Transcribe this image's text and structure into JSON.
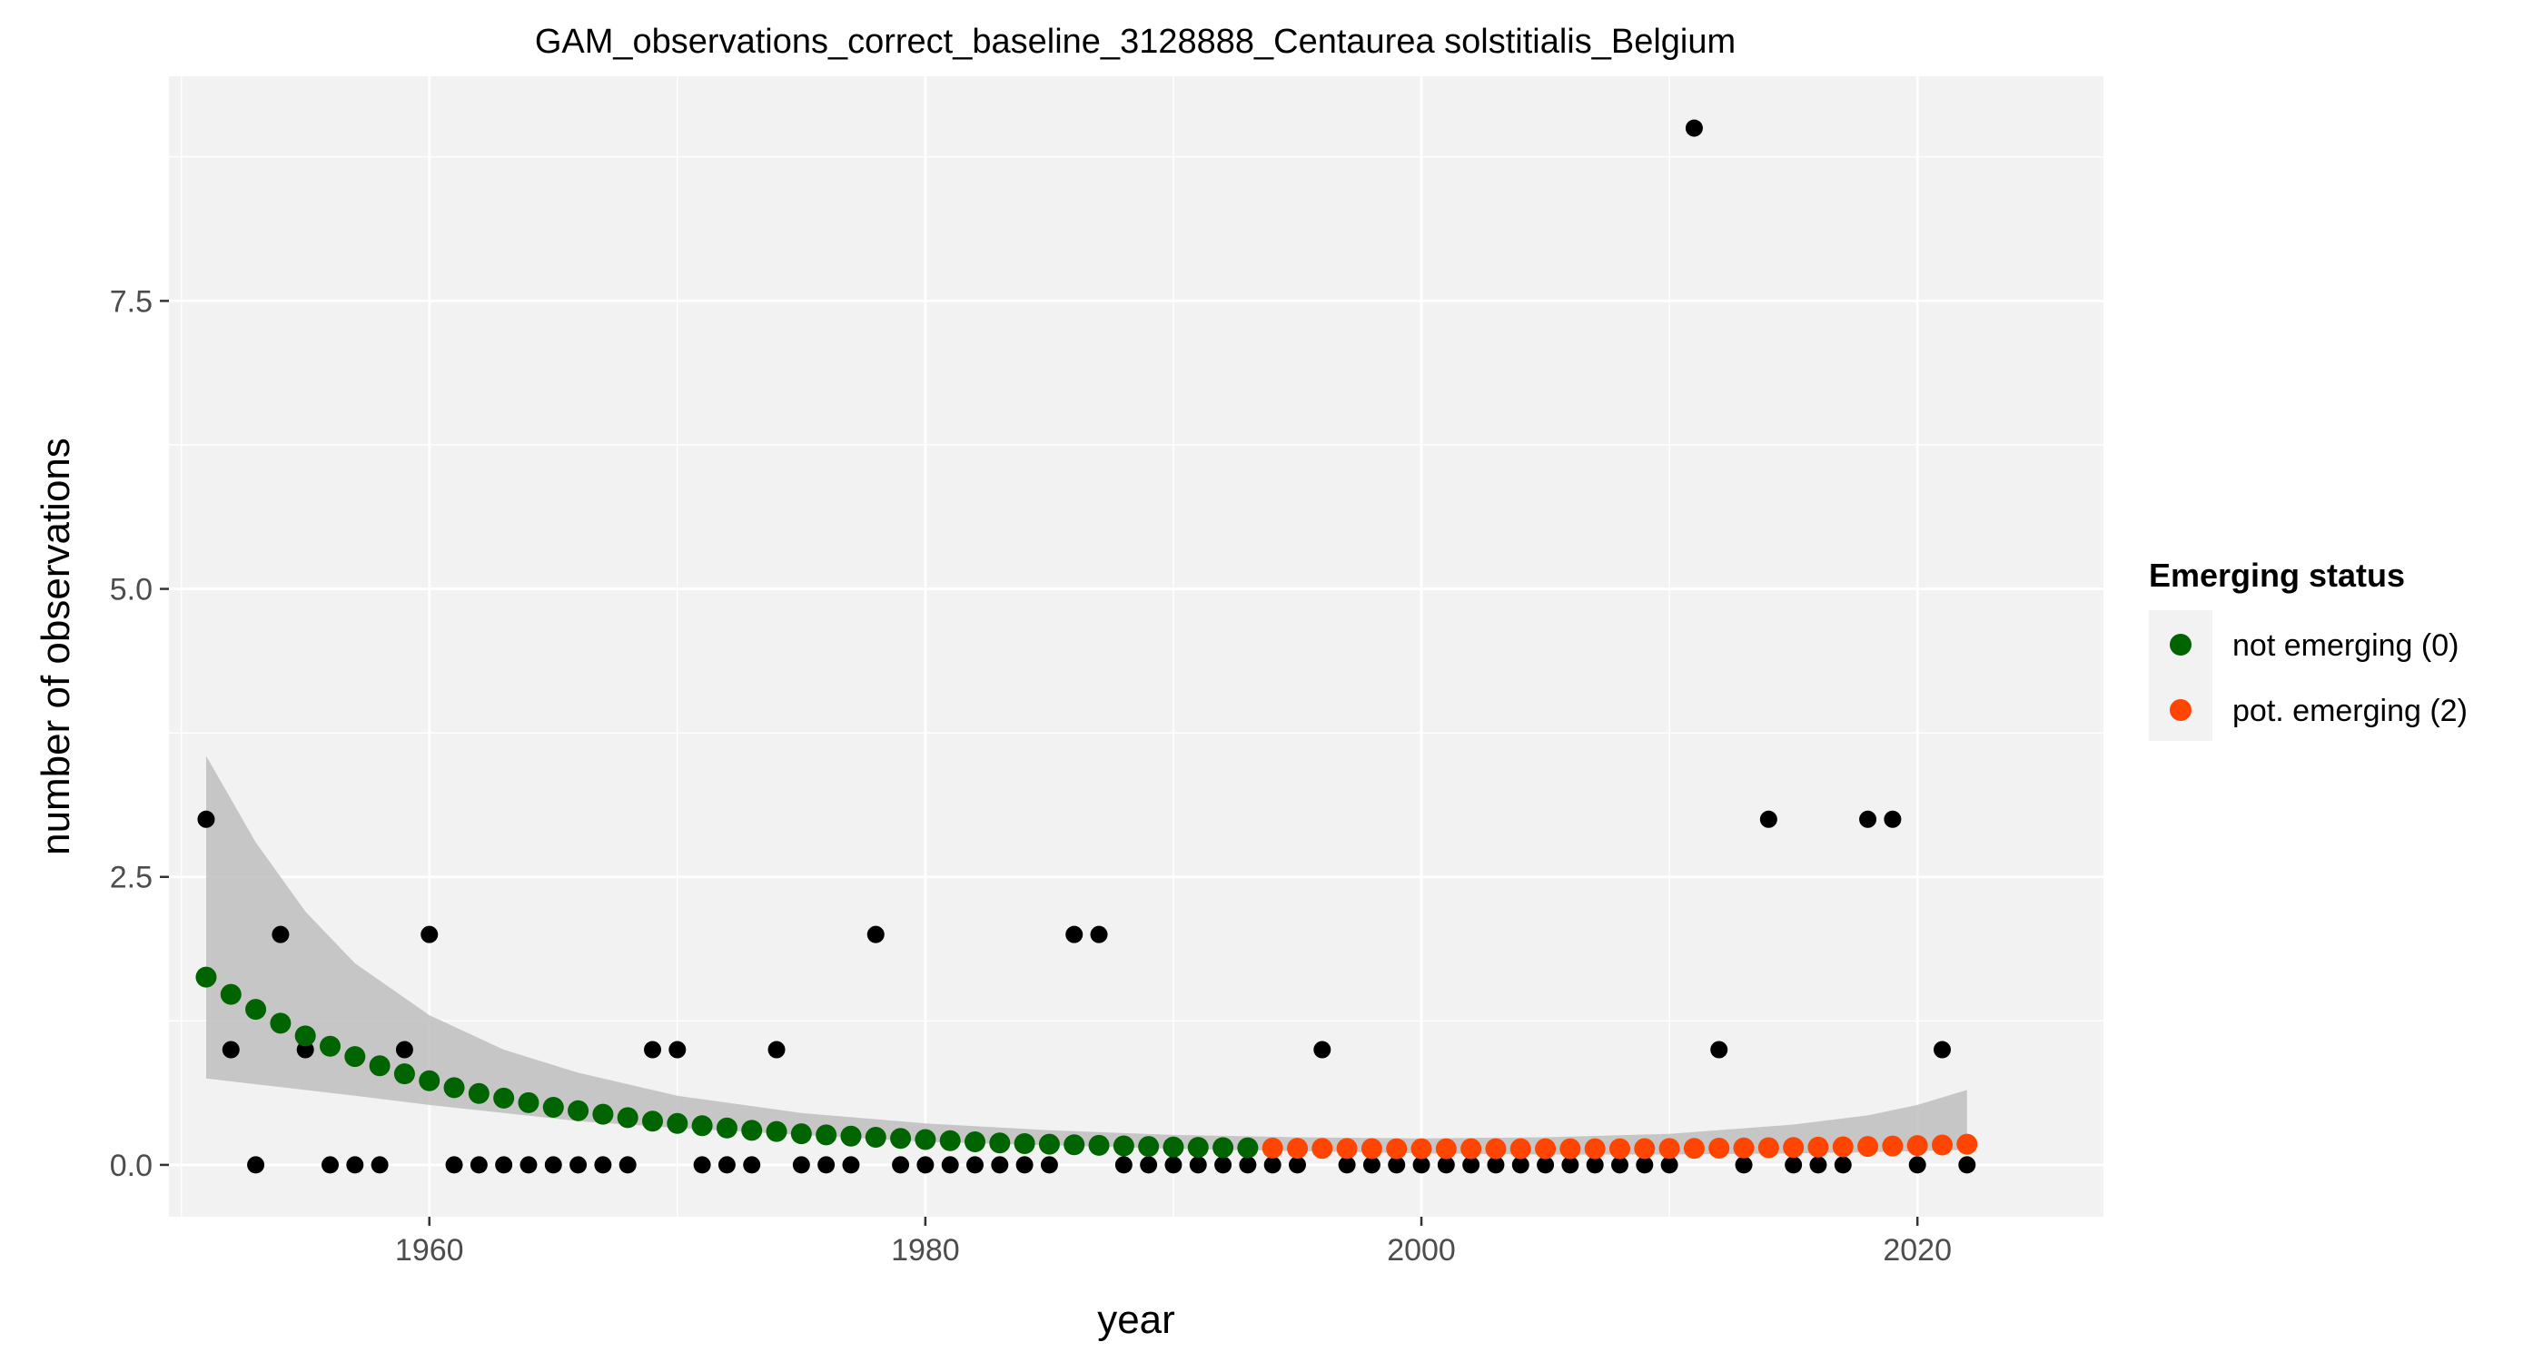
{
  "chart_data": {
    "type": "scatter",
    "title": "GAM_observations_correct_baseline_3128888_Centaurea solstitialis_Belgium",
    "xlabel": "year",
    "ylabel": "number of observations",
    "xlim": [
      1949.5,
      2027.5
    ],
    "ylim": [
      -0.45,
      9.45
    ],
    "x_ticks": [
      1960,
      1980,
      2000,
      2020
    ],
    "x_tick_labels": [
      "1960",
      "1980",
      "2000",
      "2020"
    ],
    "y_ticks": [
      0,
      2.5,
      5,
      7.5
    ],
    "y_tick_labels": [
      "0.0",
      "2.5",
      "5.0",
      "7.5"
    ],
    "grid": true,
    "legend": {
      "title": "Emerging status",
      "position": "right",
      "entries": [
        {
          "label": "not emerging (0)",
          "color": "#006400"
        },
        {
          "label": "pot. emerging (2)",
          "color": "#FF4500"
        }
      ]
    },
    "observations": {
      "color": "#000000",
      "x": [
        1951,
        1952,
        1953,
        1954,
        1955,
        1956,
        1957,
        1958,
        1959,
        1960,
        1961,
        1962,
        1963,
        1964,
        1965,
        1966,
        1967,
        1968,
        1969,
        1970,
        1971,
        1972,
        1973,
        1974,
        1975,
        1976,
        1977,
        1978,
        1979,
        1980,
        1981,
        1982,
        1983,
        1984,
        1985,
        1986,
        1987,
        1988,
        1989,
        1990,
        1991,
        1992,
        1993,
        1994,
        1995,
        1996,
        1997,
        1998,
        1999,
        2000,
        2001,
        2002,
        2003,
        2004,
        2005,
        2006,
        2007,
        2008,
        2009,
        2010,
        2011,
        2012,
        2013,
        2014,
        2015,
        2016,
        2017,
        2018,
        2019,
        2020,
        2021,
        2022
      ],
      "y": [
        3,
        1,
        0,
        2,
        1,
        0,
        0,
        0,
        1,
        2,
        0,
        0,
        0,
        0,
        0,
        0,
        0,
        0,
        1,
        1,
        0,
        0,
        0,
        1,
        0,
        0,
        0,
        2,
        0,
        0,
        0,
        0,
        0,
        0,
        0,
        2,
        2,
        0,
        0,
        0,
        0,
        0,
        0,
        0,
        0,
        1,
        0,
        0,
        0,
        0,
        0,
        0,
        0,
        0,
        0,
        0,
        0,
        0,
        0,
        0,
        9,
        1,
        0,
        3,
        0,
        0,
        0,
        3,
        3,
        0,
        1,
        0
      ]
    },
    "fit": {
      "x": [
        1951,
        1952,
        1953,
        1954,
        1955,
        1956,
        1957,
        1958,
        1959,
        1960,
        1961,
        1962,
        1963,
        1964,
        1965,
        1966,
        1967,
        1968,
        1969,
        1970,
        1971,
        1972,
        1973,
        1974,
        1975,
        1976,
        1977,
        1978,
        1979,
        1980,
        1981,
        1982,
        1983,
        1984,
        1985,
        1986,
        1987,
        1988,
        1989,
        1990,
        1991,
        1992,
        1993,
        1994,
        1995,
        1996,
        1997,
        1998,
        1999,
        2000,
        2001,
        2002,
        2003,
        2004,
        2005,
        2006,
        2007,
        2008,
        2009,
        2010,
        2011,
        2012,
        2013,
        2014,
        2015,
        2016,
        2017,
        2018,
        2019,
        2020,
        2021,
        2022
      ],
      "y": [
        1.63,
        1.48,
        1.35,
        1.23,
        1.12,
        1.03,
        0.94,
        0.86,
        0.79,
        0.73,
        0.67,
        0.62,
        0.58,
        0.54,
        0.5,
        0.47,
        0.44,
        0.41,
        0.38,
        0.36,
        0.34,
        0.32,
        0.3,
        0.29,
        0.27,
        0.26,
        0.25,
        0.24,
        0.23,
        0.22,
        0.21,
        0.2,
        0.19,
        0.185,
        0.18,
        0.175,
        0.17,
        0.165,
        0.16,
        0.155,
        0.152,
        0.15,
        0.148,
        0.146,
        0.144,
        0.143,
        0.142,
        0.141,
        0.14,
        0.14,
        0.14,
        0.14,
        0.14,
        0.14,
        0.14,
        0.14,
        0.14,
        0.14,
        0.141,
        0.142,
        0.143,
        0.145,
        0.147,
        0.149,
        0.151,
        0.154,
        0.157,
        0.16,
        0.164,
        0.168,
        0.173,
        0.18
      ],
      "status": [
        0,
        0,
        0,
        0,
        0,
        0,
        0,
        0,
        0,
        0,
        0,
        0,
        0,
        0,
        0,
        0,
        0,
        0,
        0,
        0,
        0,
        0,
        0,
        0,
        0,
        0,
        0,
        0,
        0,
        0,
        0,
        0,
        0,
        0,
        0,
        0,
        0,
        0,
        0,
        0,
        0,
        0,
        0,
        2,
        2,
        2,
        2,
        2,
        2,
        2,
        2,
        2,
        2,
        2,
        2,
        2,
        2,
        2,
        2,
        2,
        2,
        2,
        2,
        2,
        2,
        2,
        2,
        2,
        2,
        2,
        2,
        2
      ],
      "ci_x": [
        1951,
        1953,
        1955,
        1957,
        1960,
        1963,
        1966,
        1970,
        1975,
        1980,
        1985,
        1990,
        1995,
        2000,
        2005,
        2010,
        2015,
        2018,
        2020,
        2022
      ],
      "ci_upper": [
        3.55,
        2.8,
        2.2,
        1.75,
        1.3,
        1.0,
        0.8,
        0.6,
        0.45,
        0.36,
        0.3,
        0.26,
        0.24,
        0.23,
        0.24,
        0.27,
        0.35,
        0.43,
        0.52,
        0.65
      ],
      "ci_lower": [
        0.75,
        0.7,
        0.65,
        0.6,
        0.52,
        0.45,
        0.38,
        0.32,
        0.26,
        0.2,
        0.17,
        0.14,
        0.12,
        0.1,
        0.09,
        0.09,
        0.1,
        0.11,
        0.12,
        0.13
      ],
      "ci_color": "#BEBEBE"
    }
  }
}
